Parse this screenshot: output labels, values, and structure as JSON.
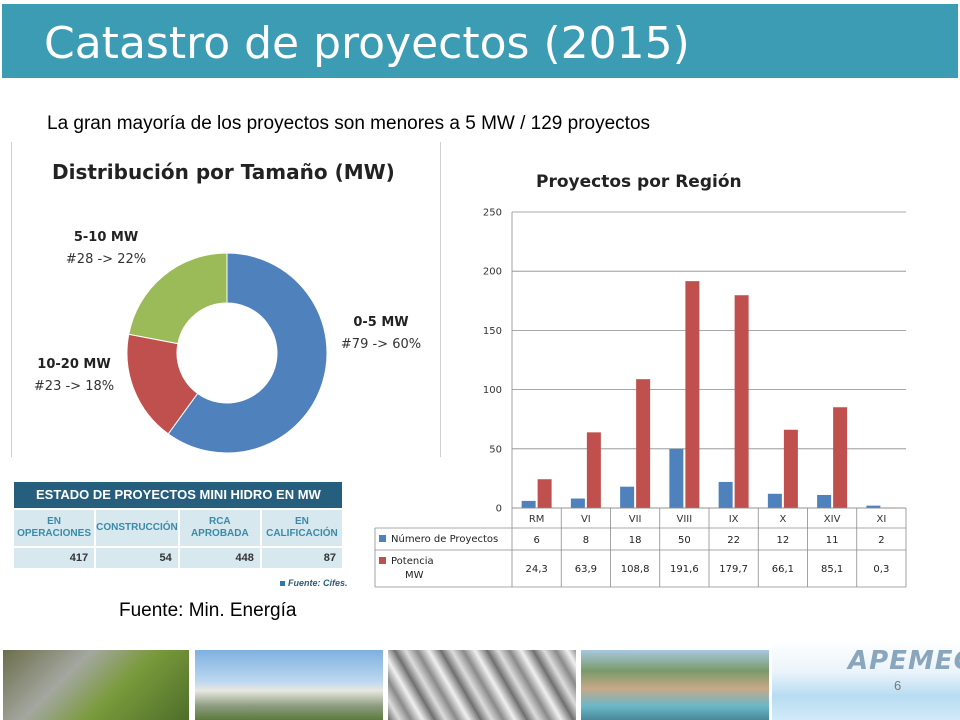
{
  "slide": {
    "title": "Catastro de proyectos (2015)",
    "subtitle": "La gran mayoría de los proyectos son menores a 5 MW / 129 proyectos",
    "source": "Fuente: Min. Energía",
    "logo": "APEMEC",
    "page_number": "6"
  },
  "chart_data": [
    {
      "type": "pie",
      "title": "Distribución por Tamaño (MW)",
      "categories": [
        "0-5 MW",
        "10-20 MW",
        "5-10 MW"
      ],
      "values": [
        60,
        18,
        22
      ],
      "labels": [
        "#79 -> 60%",
        "#23 -> 18%",
        "#28 -> 22%"
      ],
      "colors": [
        "#4f81bd",
        "#c0504d",
        "#9bbb59"
      ]
    },
    {
      "type": "bar",
      "title": "Proyectos por Región",
      "categories": [
        "RM",
        "VI",
        "VII",
        "VIII",
        "IX",
        "X",
        "XIV",
        "XI"
      ],
      "series": [
        {
          "name": "Número de Proyectos",
          "values": [
            6,
            8,
            18,
            50,
            22,
            12,
            11,
            2
          ],
          "color": "#4f81bd"
        },
        {
          "name": "Potencia MW",
          "values": [
            24.3,
            63.9,
            108.8,
            191.6,
            179.7,
            66.1,
            85.1,
            0.3
          ],
          "color": "#c0504d"
        }
      ],
      "table_values": [
        [
          "6",
          "8",
          "18",
          "50",
          "22",
          "12",
          "11",
          "2"
        ],
        [
          "24,3",
          "63,9",
          "108,8",
          "191,6",
          "179,7",
          "66,1",
          "85,1",
          "0,3"
        ]
      ],
      "series_labels": [
        [
          "Número de Proyectos"
        ],
        [
          "Potencia",
          "MW"
        ]
      ],
      "ylim": [
        0,
        250
      ],
      "yticks": [
        "0",
        "50",
        "100",
        "150",
        "200",
        "250"
      ],
      "grid": true,
      "legend": "data-table"
    }
  ],
  "status_table": {
    "title": "ESTADO DE PROYECTOS MINI HIDRO EN MW",
    "columns": [
      {
        "label": [
          "EN",
          "OPERACIONES"
        ],
        "value": "417"
      },
      {
        "label": [
          "CONSTRUCCIÓN"
        ],
        "value": "54"
      },
      {
        "label": [
          "RCA",
          "APROBADA"
        ],
        "value": "448"
      },
      {
        "label": [
          "EN",
          "CALIFICACIÓN"
        ],
        "value": "87"
      }
    ],
    "source": "Fuente: Cifes."
  }
}
